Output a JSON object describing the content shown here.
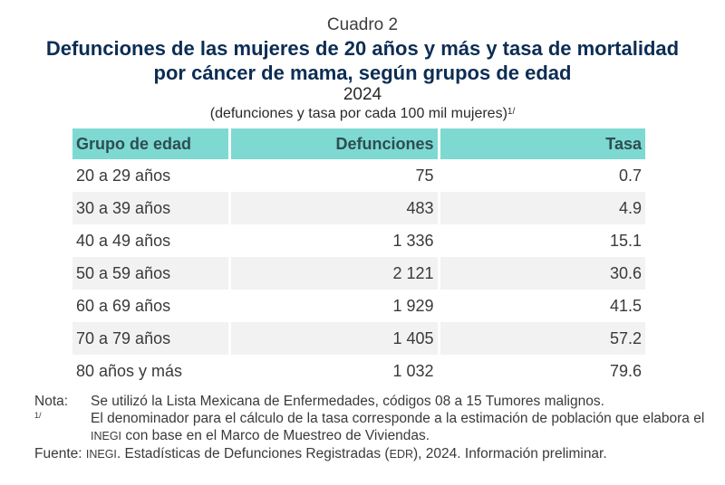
{
  "header": {
    "cuadro": "Cuadro 2",
    "title_line1": "Defunciones de las mujeres de 20 años y más y tasa de mortalidad",
    "title_line2": "por cáncer de mama, según grupos de edad",
    "year": "2024",
    "units": "(defunciones y tasa por cada 100 mil mujeres)",
    "units_footnote_ref": "1/"
  },
  "table": {
    "columns": [
      "Grupo de edad",
      "Defunciones",
      "Tasa"
    ],
    "rows": [
      {
        "group": "20 a 29 años",
        "deaths": "75",
        "rate": "0.7"
      },
      {
        "group": "30 a 39 años",
        "deaths": "483",
        "rate": "4.9"
      },
      {
        "group": "40 a 49 años",
        "deaths": "1 336",
        "rate": "15.1"
      },
      {
        "group": "50 a 59 años",
        "deaths": "2 121",
        "rate": "30.6"
      },
      {
        "group": "60 a 69 años",
        "deaths": "1 929",
        "rate": "41.5"
      },
      {
        "group": "70 a 79 años",
        "deaths": "1 405",
        "rate": "57.2"
      },
      {
        "group": "80 años y más",
        "deaths": "1 032",
        "rate": "79.6"
      }
    ]
  },
  "notes": {
    "nota_label": "Nota:",
    "nota_text": "Se utilizó la Lista Mexicana de Enfermedades, códigos 08 a 15 Tumores malignos.",
    "footnote_label": "1/",
    "footnote_text_part1": "El denominador para el cálculo de la tasa corresponde a la estimación de población que elabora el ",
    "footnote_inegi": "INEGI",
    "footnote_text_part2": " con base en el Marco de Muestreo de Viviendas.",
    "source_label": "Fuente:",
    "source_inegi": "INEGI",
    "source_text_part1": ". Estadísticas de Defunciones Registradas (",
    "source_edr": "EDR",
    "source_text_part2": "), 2024. Información preliminar."
  },
  "colors": {
    "title": "#0c2d54",
    "header_bg": "#7dd9d2",
    "header_text": "#2f4d50",
    "alt_row_bg": "#f2f2f2"
  }
}
